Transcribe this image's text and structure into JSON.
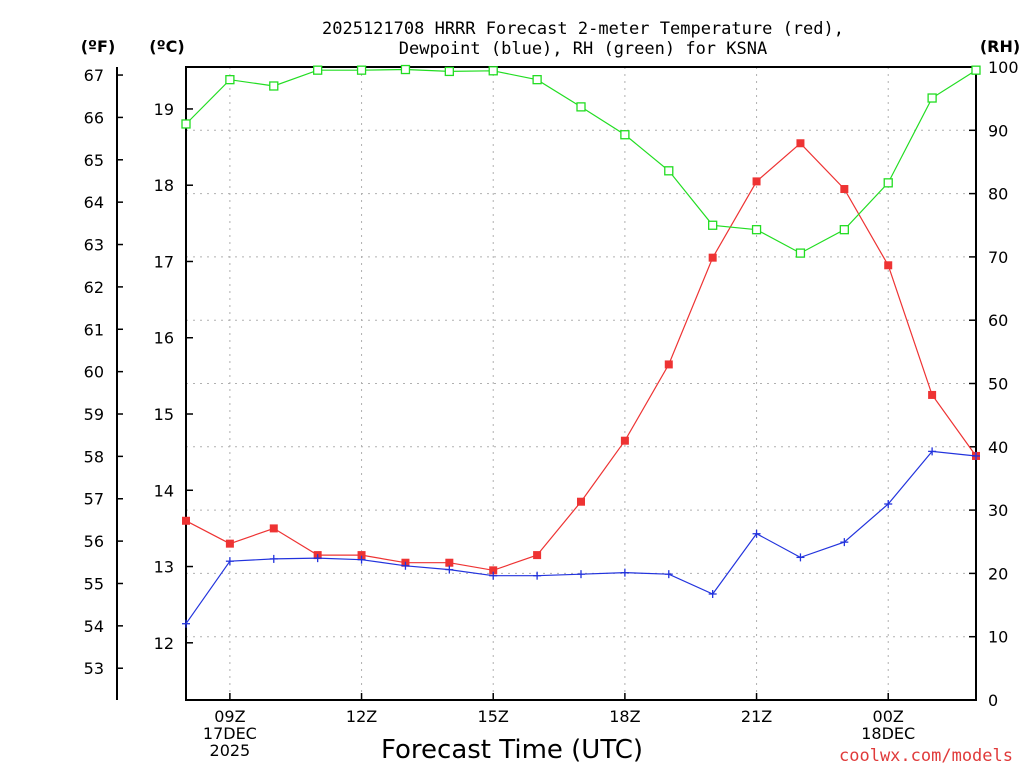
{
  "chart_data": {
    "type": "line",
    "title_line1": "2025121708 HRRR Forecast 2-meter Temperature (red),",
    "title_line2": "Dewpoint (blue), RH (green) for KSNA",
    "xlabel": "Forecast Time (UTC)",
    "credit": "coolwx.com/models",
    "axis_units": {
      "fahrenheit": "(ºF)",
      "celsius": "(ºC)",
      "rh": "(RH)"
    },
    "x": [
      8,
      9,
      10,
      11,
      12,
      13,
      14,
      15,
      16,
      17,
      18,
      19,
      20,
      21,
      22,
      23,
      24,
      25,
      26
    ],
    "x_ticks": [
      {
        "x": 9,
        "lines": [
          "09Z",
          "17DEC",
          "2025"
        ]
      },
      {
        "x": 12,
        "lines": [
          "12Z"
        ]
      },
      {
        "x": 15,
        "lines": [
          "15Z"
        ]
      },
      {
        "x": 18,
        "lines": [
          "18Z"
        ]
      },
      {
        "x": 21,
        "lines": [
          "21Z"
        ]
      },
      {
        "x": 24,
        "lines": [
          "00Z",
          "18DEC"
        ]
      }
    ],
    "xlim": [
      8,
      26
    ],
    "celsius_lim": [
      11.25,
      19.55
    ],
    "celsius_ticks": [
      12,
      13,
      14,
      15,
      16,
      17,
      18,
      19
    ],
    "fahrenheit_ticks": [
      53,
      54,
      55,
      56,
      57,
      58,
      59,
      60,
      61,
      62,
      63,
      64,
      65,
      66,
      67
    ],
    "rh_lim": [
      0,
      100
    ],
    "rh_ticks": [
      0,
      10,
      20,
      30,
      40,
      50,
      60,
      70,
      80,
      90,
      100
    ],
    "series": [
      {
        "name": "Temperature",
        "axis": "celsius",
        "color": "#ee3333",
        "marker": "filled-square",
        "values": [
          13.6,
          13.3,
          13.5,
          13.15,
          13.15,
          13.05,
          13.05,
          12.95,
          13.15,
          13.85,
          14.65,
          15.65,
          17.05,
          18.05,
          18.55,
          17.95,
          16.95,
          15.25,
          14.45
        ]
      },
      {
        "name": "Dewpoint",
        "axis": "celsius",
        "color": "#2233dd",
        "marker": "plus",
        "values": [
          12.25,
          13.07,
          13.1,
          13.11,
          13.09,
          13.01,
          12.96,
          12.88,
          12.88,
          12.9,
          12.92,
          12.9,
          12.64,
          13.43,
          13.12,
          13.32,
          13.82,
          14.51,
          14.45
        ]
      },
      {
        "name": "RH",
        "axis": "rh",
        "color": "#22dd22",
        "marker": "open-square",
        "values": [
          91,
          98,
          97,
          99.5,
          99.5,
          99.6,
          99.3,
          99.4,
          98,
          93.7,
          89.3,
          83.6,
          75,
          74.3,
          70.6,
          74.3,
          81.7,
          95.1,
          99.5
        ]
      }
    ]
  }
}
